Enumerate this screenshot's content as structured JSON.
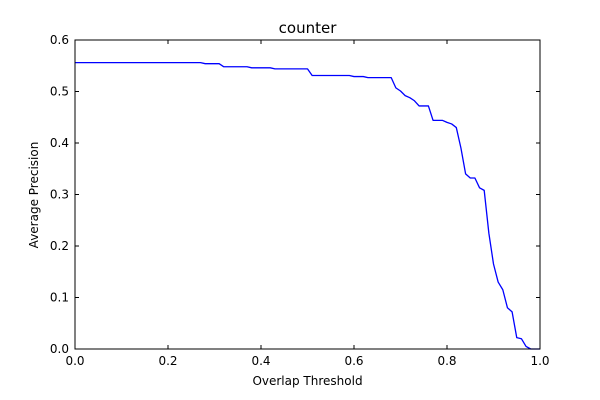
{
  "chart_data": {
    "type": "line",
    "title": "counter",
    "xlabel": "Overlap Threshold",
    "ylabel": "Average Precision",
    "xlim": [
      0.0,
      1.0
    ],
    "ylim": [
      0.0,
      0.6
    ],
    "xticks": [
      "0.0",
      "0.2",
      "0.4",
      "0.6",
      "0.8",
      "1.0"
    ],
    "yticks": [
      "0.0",
      "0.1",
      "0.2",
      "0.3",
      "0.4",
      "0.5",
      "0.6"
    ],
    "grid": false,
    "series": [
      {
        "color": "#0000ff",
        "x": [
          0.0,
          0.27,
          0.28,
          0.31,
          0.32,
          0.37,
          0.38,
          0.42,
          0.43,
          0.5,
          0.51,
          0.59,
          0.6,
          0.62,
          0.63,
          0.68,
          0.69,
          0.7,
          0.71,
          0.72,
          0.73,
          0.74,
          0.75,
          0.76,
          0.77,
          0.78,
          0.79,
          0.8,
          0.81,
          0.82,
          0.825,
          0.83,
          0.84,
          0.85,
          0.86,
          0.87,
          0.88,
          0.89,
          0.9,
          0.91,
          0.92,
          0.93,
          0.94,
          0.95,
          0.96,
          0.97,
          0.98,
          0.99,
          1.0
        ],
        "y": [
          0.556,
          0.556,
          0.554,
          0.554,
          0.548,
          0.548,
          0.546,
          0.546,
          0.544,
          0.544,
          0.531,
          0.531,
          0.529,
          0.529,
          0.527,
          0.527,
          0.507,
          0.501,
          0.492,
          0.488,
          0.482,
          0.472,
          0.472,
          0.472,
          0.444,
          0.444,
          0.444,
          0.44,
          0.437,
          0.43,
          0.41,
          0.39,
          0.34,
          0.332,
          0.332,
          0.313,
          0.308,
          0.225,
          0.165,
          0.13,
          0.115,
          0.08,
          0.072,
          0.022,
          0.02,
          0.005,
          0.0,
          0.0,
          0.0
        ]
      }
    ]
  }
}
